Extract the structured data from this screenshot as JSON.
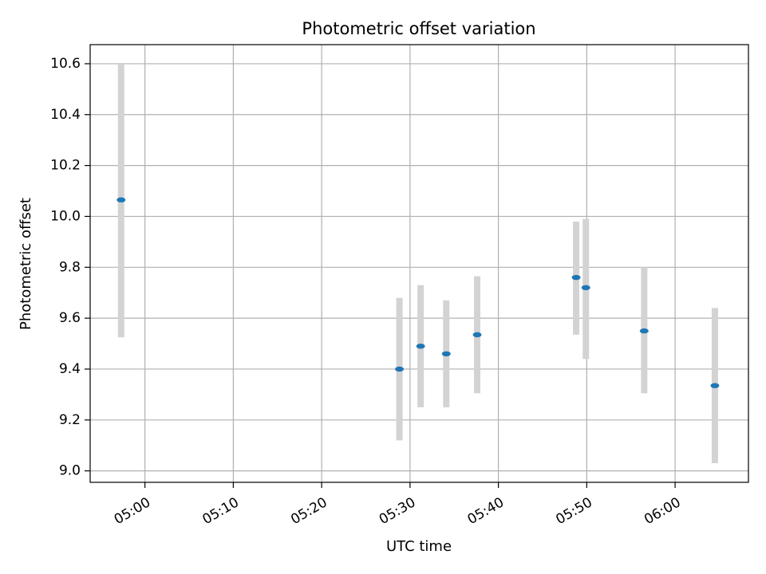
{
  "chart_data": {
    "type": "scatter",
    "title": "Photometric offset variation",
    "xlabel": "UTC time",
    "ylabel": "Photometric offset",
    "grid": true,
    "xlim_minutes": [
      293.8,
      368.3
    ],
    "ylim": [
      8.955,
      10.675
    ],
    "x_ticks": [
      {
        "minutes": 300,
        "label": "05:00"
      },
      {
        "minutes": 310,
        "label": "05:10"
      },
      {
        "minutes": 320,
        "label": "05:20"
      },
      {
        "minutes": 330,
        "label": "05:30"
      },
      {
        "minutes": 340,
        "label": "05:40"
      },
      {
        "minutes": 350,
        "label": "05:50"
      },
      {
        "minutes": 360,
        "label": "06:00"
      }
    ],
    "y_ticks": [
      {
        "value": 9.0,
        "label": "9.0"
      },
      {
        "value": 9.2,
        "label": "9.2"
      },
      {
        "value": 9.4,
        "label": "9.4"
      },
      {
        "value": 9.6,
        "label": "9.6"
      },
      {
        "value": 9.8,
        "label": "9.8"
      },
      {
        "value": 10.0,
        "label": "10.0"
      },
      {
        "value": 10.2,
        "label": "10.2"
      },
      {
        "value": 10.4,
        "label": "10.4"
      },
      {
        "value": 10.6,
        "label": "10.6"
      }
    ],
    "series": [
      {
        "name": "offset",
        "marker_color": "#1f77b4",
        "errorbar_color": "#d3d3d3",
        "points": [
          {
            "minutes": 297.3,
            "y": 10.065,
            "yerr_low": 9.525,
            "yerr_high": 10.6
          },
          {
            "minutes": 328.8,
            "y": 9.4,
            "yerr_low": 9.12,
            "yerr_high": 9.68
          },
          {
            "minutes": 331.2,
            "y": 9.49,
            "yerr_low": 9.25,
            "yerr_high": 9.73
          },
          {
            "minutes": 334.1,
            "y": 9.46,
            "yerr_low": 9.25,
            "yerr_high": 9.67
          },
          {
            "minutes": 337.6,
            "y": 9.535,
            "yerr_low": 9.305,
            "yerr_high": 9.765
          },
          {
            "minutes": 348.8,
            "y": 9.76,
            "yerr_low": 9.535,
            "yerr_high": 9.98
          },
          {
            "minutes": 349.9,
            "y": 9.72,
            "yerr_low": 9.44,
            "yerr_high": 9.99
          },
          {
            "minutes": 356.5,
            "y": 9.55,
            "yerr_low": 9.305,
            "yerr_high": 9.8
          },
          {
            "minutes": 364.5,
            "y": 9.335,
            "yerr_low": 9.03,
            "yerr_high": 9.64
          }
        ]
      }
    ]
  }
}
